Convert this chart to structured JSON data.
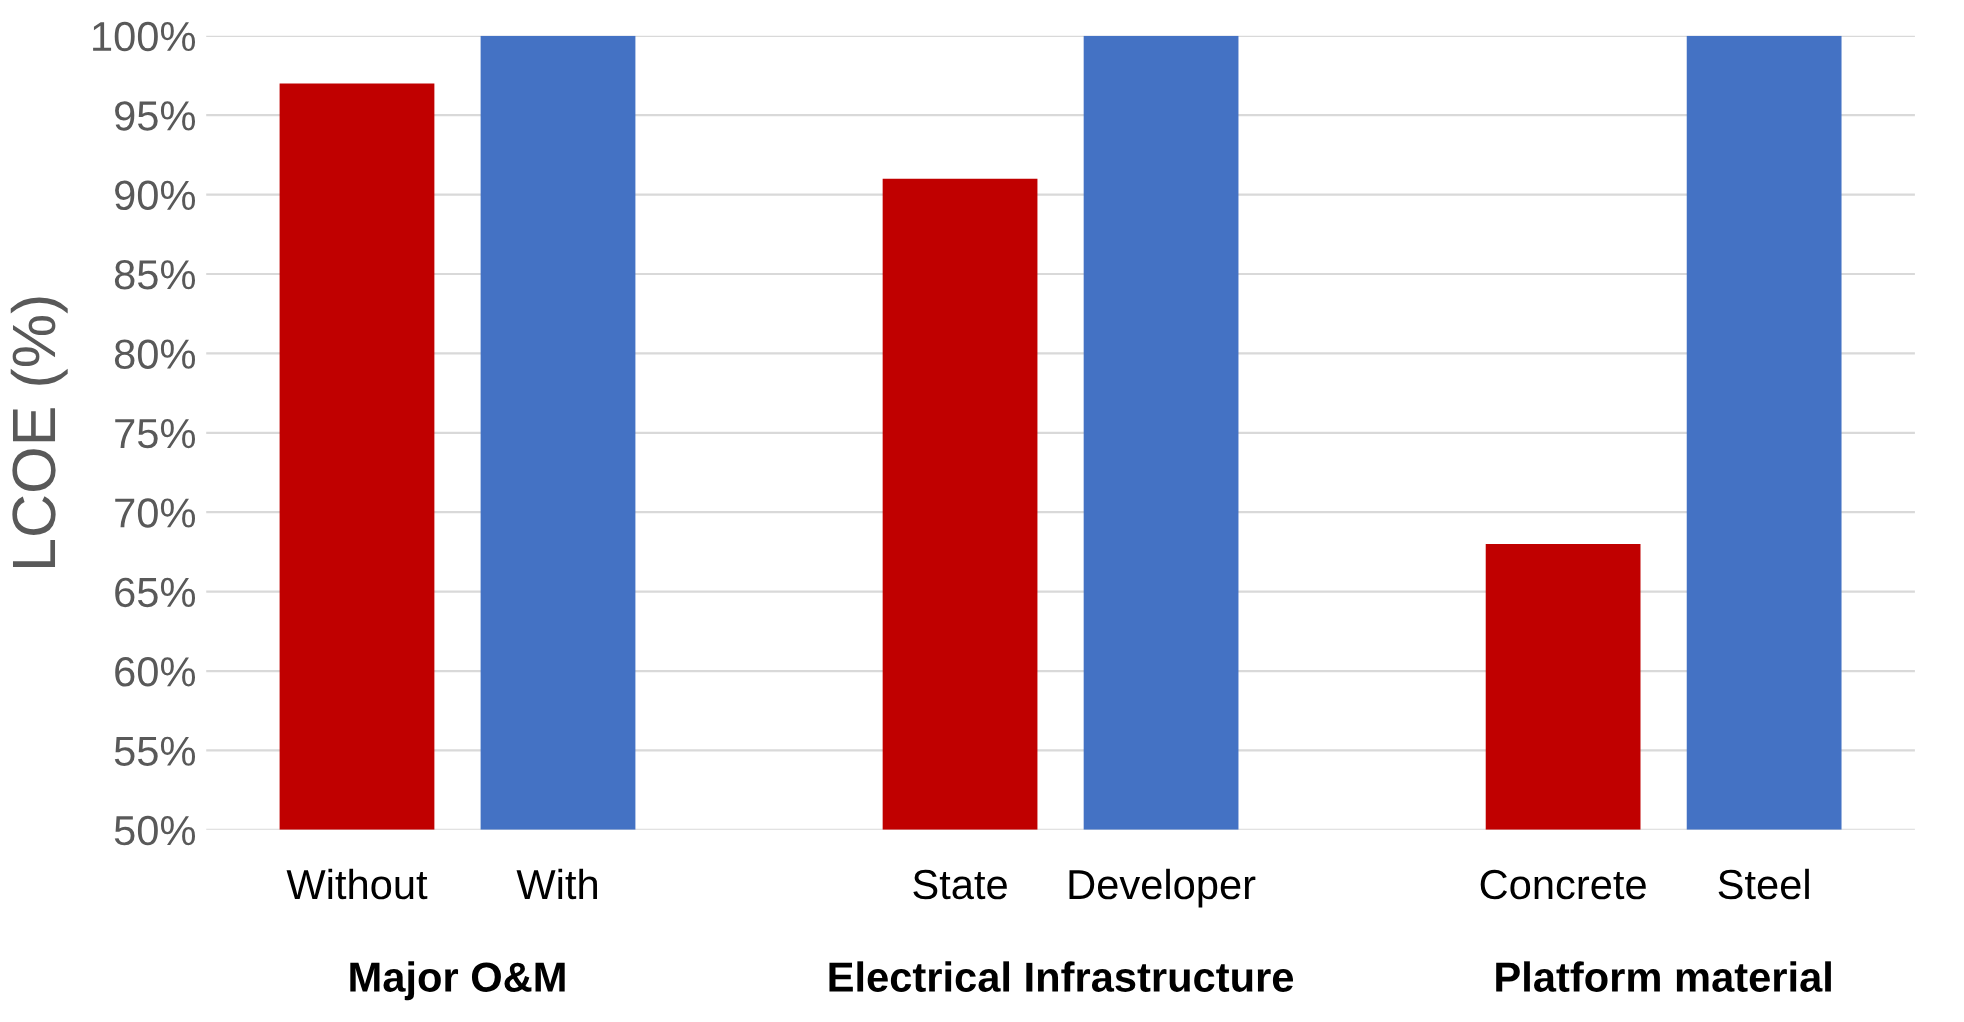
{
  "chart_data": {
    "type": "bar",
    "ylabel": "LCOE (%)",
    "categories": [
      "Without",
      "With",
      null,
      "State",
      "Developer",
      null,
      "Concrete",
      "Steel"
    ],
    "values": [
      97,
      100,
      null,
      91,
      100,
      null,
      68,
      100
    ],
    "colors": [
      "#c00000",
      "#4472c4",
      null,
      "#c00000",
      "#4472c4",
      null,
      "#c00000",
      "#4472c4"
    ],
    "ylim": [
      50,
      100
    ],
    "yticks": [
      {
        "value": 50,
        "label": "50%"
      },
      {
        "value": 55,
        "label": "55%"
      },
      {
        "value": 60,
        "label": "60%"
      },
      {
        "value": 65,
        "label": "65%"
      },
      {
        "value": 70,
        "label": "70%"
      },
      {
        "value": 75,
        "label": "75%"
      },
      {
        "value": 80,
        "label": "80%"
      },
      {
        "value": 85,
        "label": "85%"
      },
      {
        "value": 90,
        "label": "90%"
      },
      {
        "value": 95,
        "label": "95%"
      },
      {
        "value": 100,
        "label": "100%"
      }
    ],
    "grid": "y",
    "legend": false,
    "annotations": [
      "Major O&M",
      "Electrical Infrastructure",
      "Platform material"
    ]
  }
}
